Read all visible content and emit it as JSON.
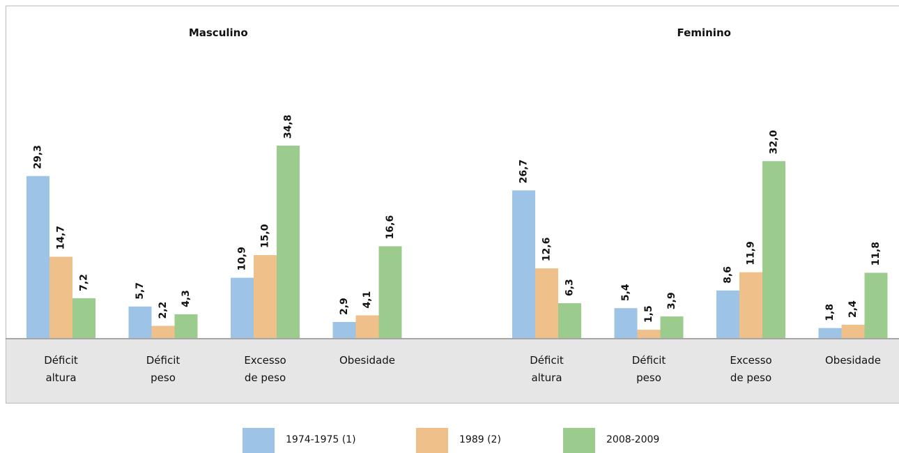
{
  "chart_data": {
    "type": "bar",
    "legend": [
      {
        "name": "1974-1975 (1)",
        "color": "#9dc3e6"
      },
      {
        "name": "1989 (2)",
        "color": "#f0c08a"
      },
      {
        "name": "2008-2009",
        "color": "#9ccb8e"
      }
    ],
    "panels": [
      {
        "title": "Masculino",
        "categories": [
          "Déficit\naltura",
          "Déficit\npeso",
          "Excesso\nde peso",
          "Obesidade"
        ],
        "series": [
          {
            "values": [
              29.3,
              5.7,
              10.9,
              2.9
            ],
            "value_labels": [
              "29,3",
              "5,7",
              "10,9",
              "2,9"
            ]
          },
          {
            "values": [
              14.7,
              2.2,
              15.0,
              4.1
            ],
            "value_labels": [
              "14,7",
              "2,2",
              "15,0",
              "4,1"
            ]
          },
          {
            "values": [
              7.2,
              4.3,
              34.8,
              16.6
            ],
            "value_labels": [
              "7,2",
              "4,3",
              "34,8",
              "16,6"
            ]
          }
        ]
      },
      {
        "title": "Feminino",
        "categories": [
          "Déficit\naltura",
          "Déficit\npeso",
          "Excesso\nde peso",
          "Obesidade"
        ],
        "series": [
          {
            "values": [
              26.7,
              5.4,
              8.6,
              1.8
            ],
            "value_labels": [
              "26,7",
              "5,4",
              "8,6",
              "1,8"
            ]
          },
          {
            "values": [
              12.6,
              1.5,
              11.9,
              2.4
            ],
            "value_labels": [
              "12,6",
              "1,5",
              "11,9",
              "2,4"
            ]
          },
          {
            "values": [
              6.3,
              3.9,
              32.0,
              11.8
            ],
            "value_labels": [
              "6,3",
              "3,9",
              "32,0",
              "11,8"
            ]
          }
        ]
      }
    ]
  }
}
